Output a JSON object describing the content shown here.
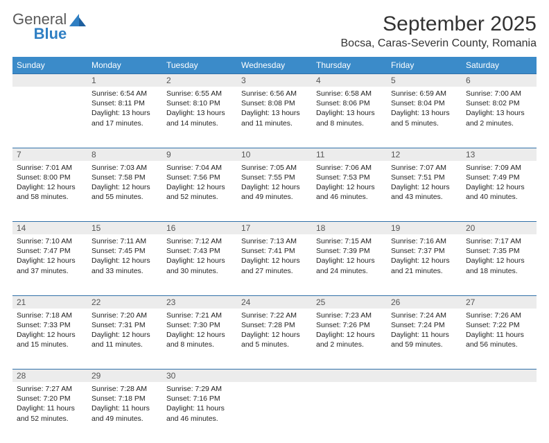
{
  "brand": {
    "name_line1": "General",
    "name_line2": "Blue",
    "icon_color": "#2f7fc3",
    "text_color_muted": "#5a5a5a"
  },
  "title": "September 2025",
  "location": "Bocsa, Caras-Severin County, Romania",
  "header_bg": "#3b8bc9",
  "header_fg": "#ffffff",
  "daynum_bg": "#ececec",
  "daynum_border": "#2f6fa8",
  "weekdays": [
    "Sunday",
    "Monday",
    "Tuesday",
    "Wednesday",
    "Thursday",
    "Friday",
    "Saturday"
  ],
  "weeks": [
    [
      null,
      {
        "n": "1",
        "sr": "6:54 AM",
        "ss": "8:11 PM",
        "dl": "13 hours and 17 minutes."
      },
      {
        "n": "2",
        "sr": "6:55 AM",
        "ss": "8:10 PM",
        "dl": "13 hours and 14 minutes."
      },
      {
        "n": "3",
        "sr": "6:56 AM",
        "ss": "8:08 PM",
        "dl": "13 hours and 11 minutes."
      },
      {
        "n": "4",
        "sr": "6:58 AM",
        "ss": "8:06 PM",
        "dl": "13 hours and 8 minutes."
      },
      {
        "n": "5",
        "sr": "6:59 AM",
        "ss": "8:04 PM",
        "dl": "13 hours and 5 minutes."
      },
      {
        "n": "6",
        "sr": "7:00 AM",
        "ss": "8:02 PM",
        "dl": "13 hours and 2 minutes."
      }
    ],
    [
      {
        "n": "7",
        "sr": "7:01 AM",
        "ss": "8:00 PM",
        "dl": "12 hours and 58 minutes."
      },
      {
        "n": "8",
        "sr": "7:03 AM",
        "ss": "7:58 PM",
        "dl": "12 hours and 55 minutes."
      },
      {
        "n": "9",
        "sr": "7:04 AM",
        "ss": "7:56 PM",
        "dl": "12 hours and 52 minutes."
      },
      {
        "n": "10",
        "sr": "7:05 AM",
        "ss": "7:55 PM",
        "dl": "12 hours and 49 minutes."
      },
      {
        "n": "11",
        "sr": "7:06 AM",
        "ss": "7:53 PM",
        "dl": "12 hours and 46 minutes."
      },
      {
        "n": "12",
        "sr": "7:07 AM",
        "ss": "7:51 PM",
        "dl": "12 hours and 43 minutes."
      },
      {
        "n": "13",
        "sr": "7:09 AM",
        "ss": "7:49 PM",
        "dl": "12 hours and 40 minutes."
      }
    ],
    [
      {
        "n": "14",
        "sr": "7:10 AM",
        "ss": "7:47 PM",
        "dl": "12 hours and 37 minutes."
      },
      {
        "n": "15",
        "sr": "7:11 AM",
        "ss": "7:45 PM",
        "dl": "12 hours and 33 minutes."
      },
      {
        "n": "16",
        "sr": "7:12 AM",
        "ss": "7:43 PM",
        "dl": "12 hours and 30 minutes."
      },
      {
        "n": "17",
        "sr": "7:13 AM",
        "ss": "7:41 PM",
        "dl": "12 hours and 27 minutes."
      },
      {
        "n": "18",
        "sr": "7:15 AM",
        "ss": "7:39 PM",
        "dl": "12 hours and 24 minutes."
      },
      {
        "n": "19",
        "sr": "7:16 AM",
        "ss": "7:37 PM",
        "dl": "12 hours and 21 minutes."
      },
      {
        "n": "20",
        "sr": "7:17 AM",
        "ss": "7:35 PM",
        "dl": "12 hours and 18 minutes."
      }
    ],
    [
      {
        "n": "21",
        "sr": "7:18 AM",
        "ss": "7:33 PM",
        "dl": "12 hours and 15 minutes."
      },
      {
        "n": "22",
        "sr": "7:20 AM",
        "ss": "7:31 PM",
        "dl": "12 hours and 11 minutes."
      },
      {
        "n": "23",
        "sr": "7:21 AM",
        "ss": "7:30 PM",
        "dl": "12 hours and 8 minutes."
      },
      {
        "n": "24",
        "sr": "7:22 AM",
        "ss": "7:28 PM",
        "dl": "12 hours and 5 minutes."
      },
      {
        "n": "25",
        "sr": "7:23 AM",
        "ss": "7:26 PM",
        "dl": "12 hours and 2 minutes."
      },
      {
        "n": "26",
        "sr": "7:24 AM",
        "ss": "7:24 PM",
        "dl": "11 hours and 59 minutes."
      },
      {
        "n": "27",
        "sr": "7:26 AM",
        "ss": "7:22 PM",
        "dl": "11 hours and 56 minutes."
      }
    ],
    [
      {
        "n": "28",
        "sr": "7:27 AM",
        "ss": "7:20 PM",
        "dl": "11 hours and 52 minutes."
      },
      {
        "n": "29",
        "sr": "7:28 AM",
        "ss": "7:18 PM",
        "dl": "11 hours and 49 minutes."
      },
      {
        "n": "30",
        "sr": "7:29 AM",
        "ss": "7:16 PM",
        "dl": "11 hours and 46 minutes."
      },
      null,
      null,
      null,
      null
    ]
  ],
  "labels": {
    "sunrise": "Sunrise:",
    "sunset": "Sunset:",
    "daylight": "Daylight:"
  }
}
